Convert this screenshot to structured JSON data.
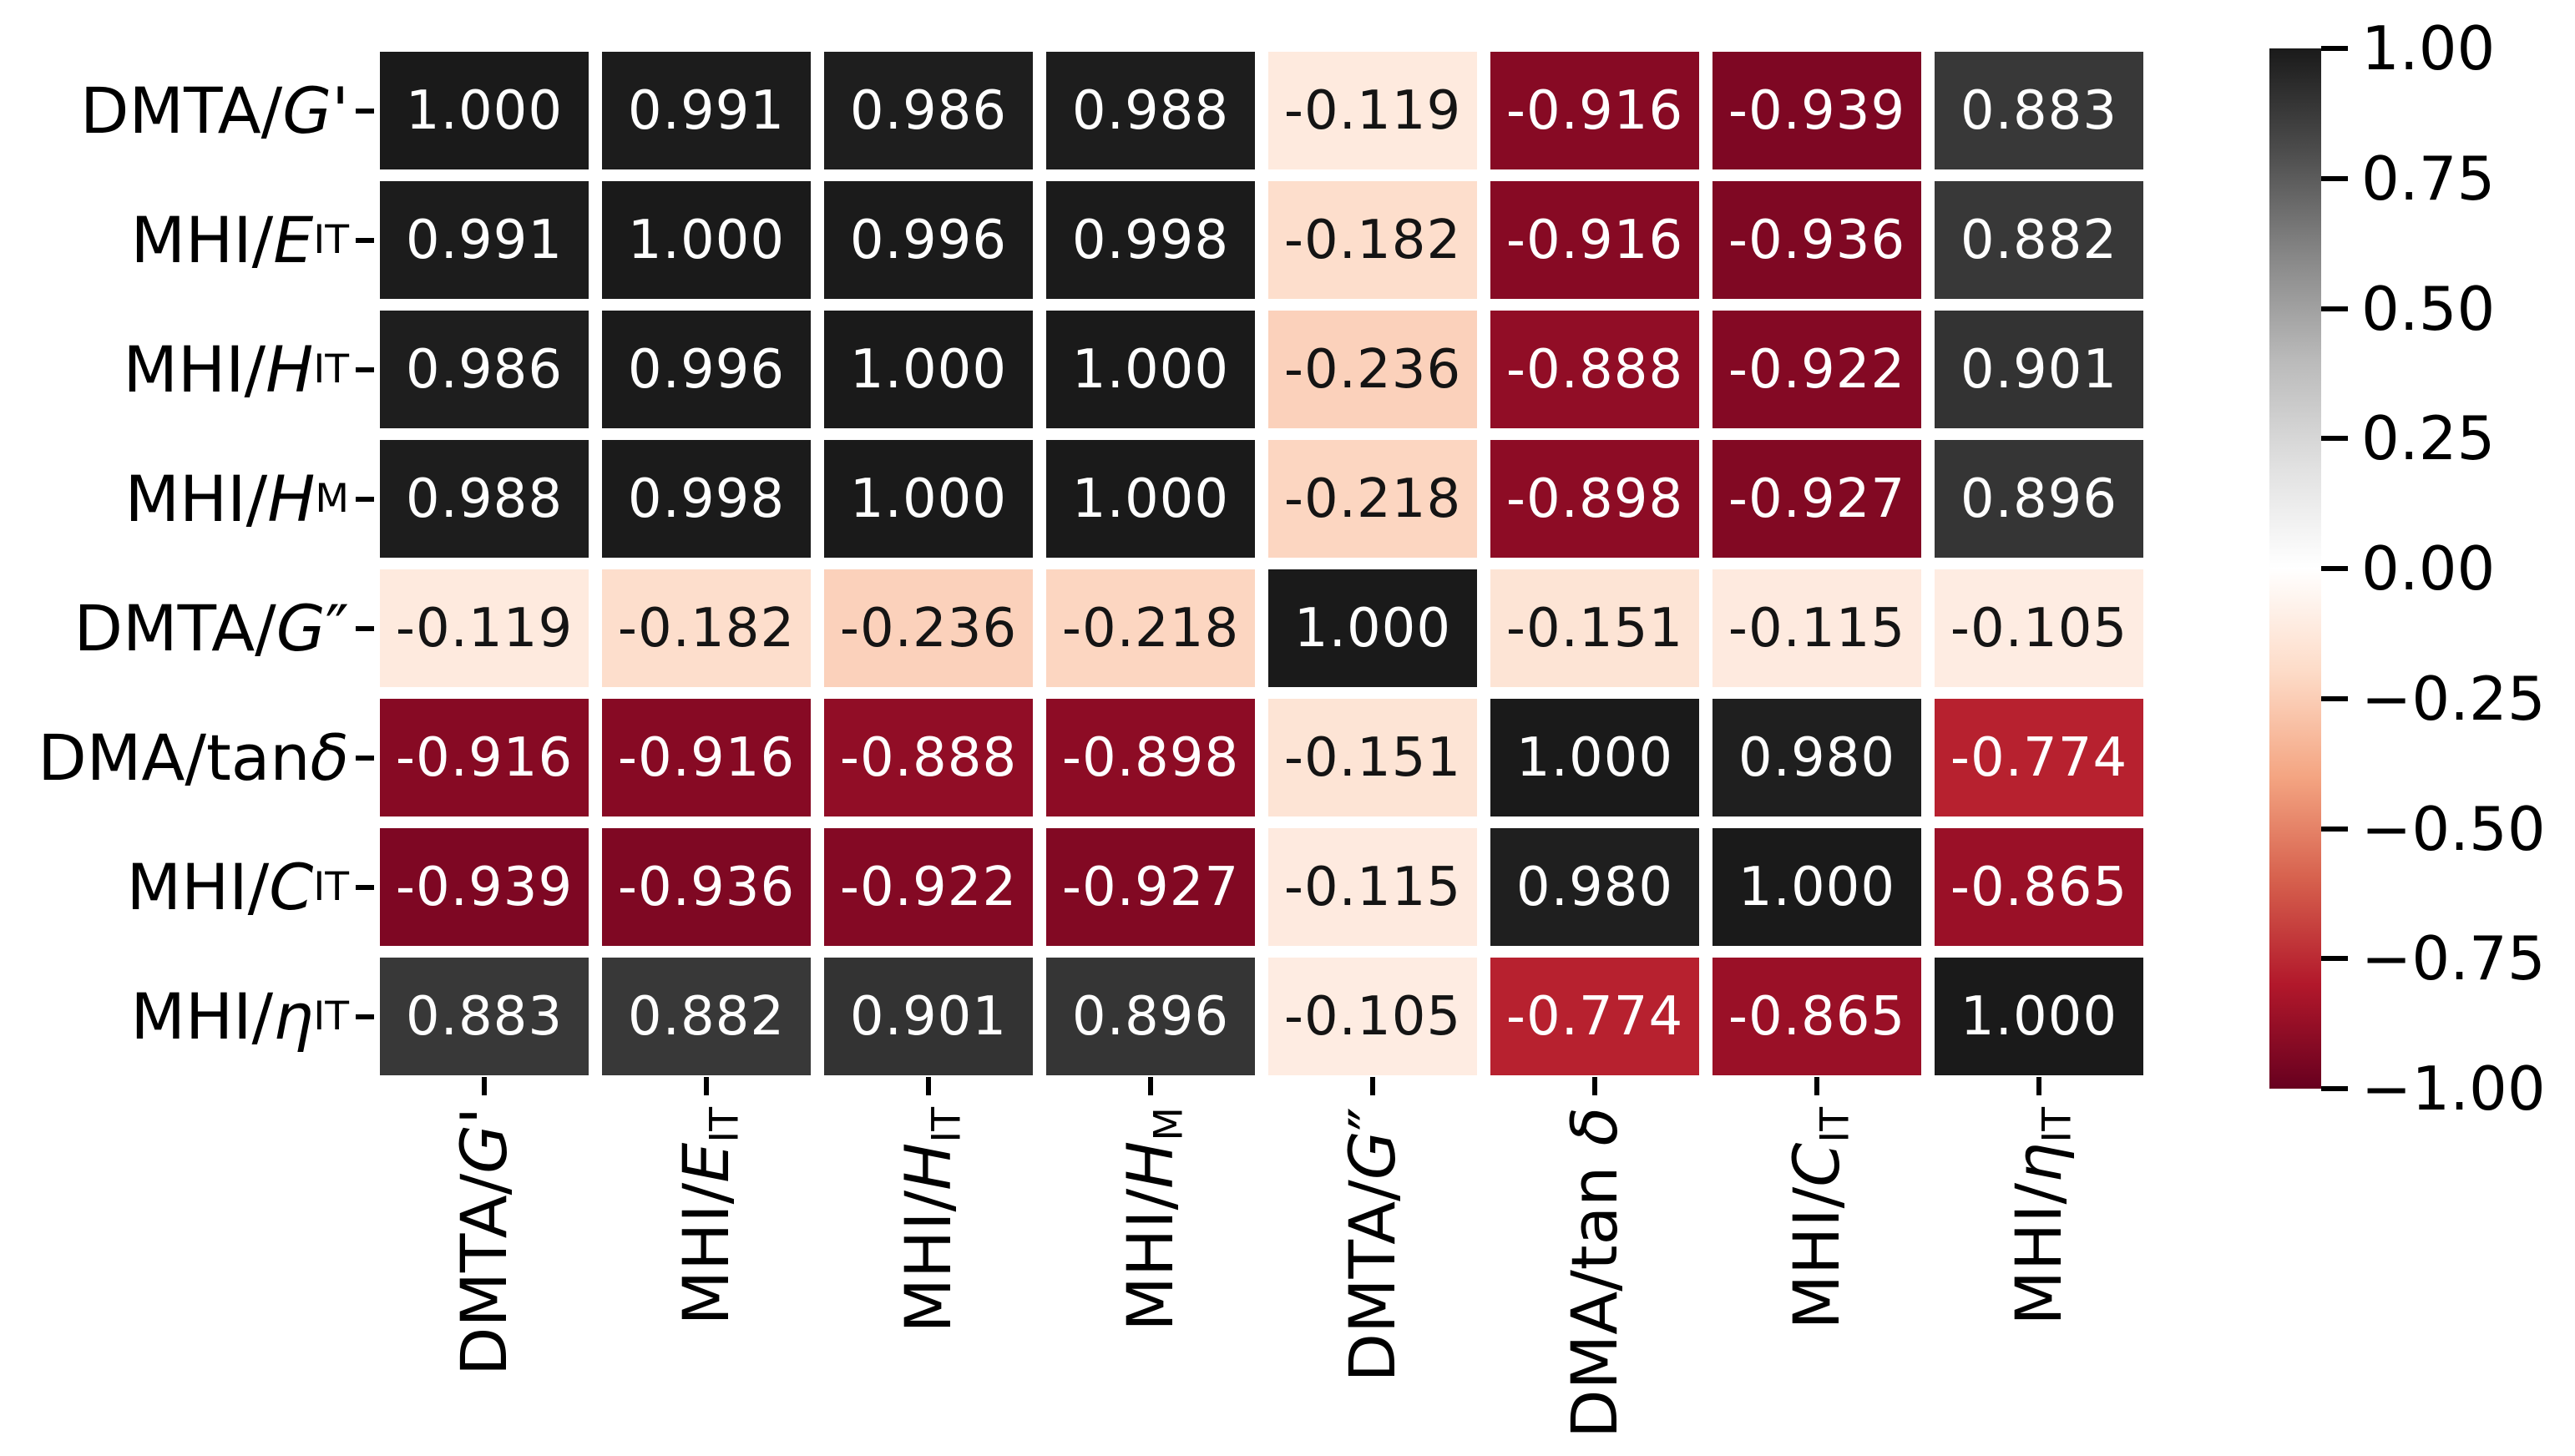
{
  "chart_data": {
    "type": "heatmap",
    "description": "Correlation matrix heatmap with annotated coefficients",
    "colormap": "RdGy",
    "vmin": -1,
    "vmax": 1,
    "grid_gaps": true,
    "cell_gap_color": "#ffffff",
    "colormap_stops": [
      "#67001f",
      "#b2182b",
      "#d6604d",
      "#f4a582",
      "#fddbc7",
      "#ffffff",
      "#e0e0e0",
      "#bababa",
      "#878787",
      "#4d4d4d",
      "#1a1a1a"
    ],
    "variables": [
      {
        "name": "DMTA/G'",
        "segments": [
          {
            "t": "DMTA/"
          },
          {
            "t": "G",
            "style": "italic"
          },
          {
            "t": "'"
          }
        ]
      },
      {
        "name": "MHI/E_IT",
        "segments": [
          {
            "t": "MHI/"
          },
          {
            "t": "E",
            "style": "italic"
          },
          {
            "t": "IT",
            "style": "sub"
          }
        ]
      },
      {
        "name": "MHI/H_IT",
        "segments": [
          {
            "t": "MHI/"
          },
          {
            "t": "H",
            "style": "italic"
          },
          {
            "t": "IT",
            "style": "sub"
          }
        ]
      },
      {
        "name": "MHI/H_M",
        "segments": [
          {
            "t": "MHI/"
          },
          {
            "t": "H",
            "style": "italic"
          },
          {
            "t": "M",
            "style": "sub"
          }
        ]
      },
      {
        "name": "DMTA/G″",
        "segments": [
          {
            "t": "DMTA/"
          },
          {
            "t": "G",
            "style": "italic"
          },
          {
            "t": "″"
          }
        ]
      },
      {
        "name": "DMA/tan δ",
        "segments": [
          {
            "t": "DMA/tan "
          },
          {
            "t": "δ",
            "style": "italic"
          }
        ]
      },
      {
        "name": "MHI/C_IT",
        "segments": [
          {
            "t": "MHI/"
          },
          {
            "t": "C",
            "style": "italic"
          },
          {
            "t": "IT",
            "style": "sub"
          }
        ]
      },
      {
        "name": "MHI/η_IT",
        "segments": [
          {
            "t": "MHI/"
          },
          {
            "t": "η",
            "style": "italic"
          },
          {
            "t": "IT",
            "style": "sub"
          }
        ]
      }
    ],
    "matrix": [
      [
        "1.000",
        "0.991",
        "0.986",
        "0.988",
        "-0.119",
        "-0.916",
        "-0.939",
        "0.883"
      ],
      [
        "0.991",
        "1.000",
        "0.996",
        "0.998",
        "-0.182",
        "-0.916",
        "-0.936",
        "0.882"
      ],
      [
        "0.986",
        "0.996",
        "1.000",
        "1.000",
        "-0.236",
        "-0.888",
        "-0.922",
        "0.901"
      ],
      [
        "0.988",
        "0.998",
        "1.000",
        "1.000",
        "-0.218",
        "-0.898",
        "-0.927",
        "0.896"
      ],
      [
        "-0.119",
        "-0.182",
        "-0.236",
        "-0.218",
        "1.000",
        "-0.151",
        "-0.115",
        "-0.105"
      ],
      [
        "-0.916",
        "-0.916",
        "-0.888",
        "-0.898",
        "-0.151",
        "1.000",
        "0.980",
        "-0.774"
      ],
      [
        "-0.939",
        "-0.936",
        "-0.922",
        "-0.927",
        "-0.115",
        "0.980",
        "1.000",
        "-0.865"
      ],
      [
        "0.883",
        "0.882",
        "0.901",
        "0.896",
        "-0.105",
        "-0.774",
        "-0.865",
        "1.000"
      ]
    ],
    "colorbar": {
      "position": "right",
      "ticks": [
        "1.00",
        "0.75",
        "0.50",
        "0.25",
        "0.00",
        "−0.25",
        "−0.50",
        "−0.75",
        "−1.00"
      ]
    },
    "x_tick_rotation_deg": 90
  }
}
